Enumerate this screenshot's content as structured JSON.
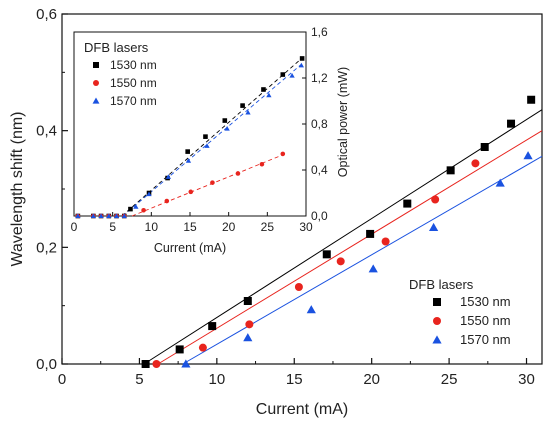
{
  "chart_data": [
    {
      "type": "scatter",
      "title": "",
      "xlabel": "Current (mA)",
      "ylabel": "Wavelength shift (nm)",
      "xlim": [
        0,
        31
      ],
      "ylim": [
        0,
        0.6
      ],
      "x_ticks": [
        "0",
        "5",
        "10",
        "15",
        "20",
        "25",
        "30"
      ],
      "y_ticks": [
        "0,0",
        "0,2",
        "0,4",
        "0,6"
      ],
      "grid": false,
      "legend_title": "DFB lasers",
      "legend_placement": "bottom-right",
      "series": [
        {
          "name": "1530 nm",
          "marker": "square",
          "color": "#000000",
          "fit_line": [
            [
              5.3,
              0.0
            ],
            [
              31,
              0.436
            ]
          ],
          "points": [
            [
              5.4,
              0.0
            ],
            [
              7.6,
              0.025
            ],
            [
              9.7,
              0.065
            ],
            [
              12.0,
              0.108
            ],
            [
              17.1,
              0.188
            ],
            [
              19.9,
              0.223
            ],
            [
              22.3,
              0.275
            ],
            [
              25.1,
              0.332
            ],
            [
              27.3,
              0.372
            ],
            [
              29.0,
              0.412
            ],
            [
              30.3,
              0.453
            ]
          ]
        },
        {
          "name": "1550 nm",
          "marker": "circle",
          "color": "#e8241e",
          "fit_line": [
            [
              6.2,
              0.0
            ],
            [
              31,
              0.4
            ]
          ],
          "points": [
            [
              6.1,
              0.0
            ],
            [
              9.1,
              0.028
            ],
            [
              12.1,
              0.068
            ],
            [
              15.3,
              0.132
            ],
            [
              18.0,
              0.176
            ],
            [
              20.9,
              0.21
            ],
            [
              24.1,
              0.282
            ],
            [
              26.7,
              0.344
            ]
          ]
        },
        {
          "name": "1570 nm",
          "marker": "triangle",
          "color": "#1a52e0",
          "fit_line": [
            [
              7.8,
              0.0
            ],
            [
              31,
              0.356
            ]
          ],
          "points": [
            [
              8.0,
              0.0
            ],
            [
              12.0,
              0.045
            ],
            [
              16.1,
              0.093
            ],
            [
              20.1,
              0.163
            ],
            [
              24.0,
              0.234
            ],
            [
              28.3,
              0.31
            ],
            [
              30.1,
              0.357
            ]
          ]
        }
      ]
    },
    {
      "type": "scatter",
      "title": "",
      "xlabel": "Current (mA)",
      "ylabel": "Optical power (mW)",
      "xlim": [
        0,
        30
      ],
      "ylim": [
        0,
        1.6
      ],
      "x_ticks": [
        "0",
        "5",
        "10",
        "15",
        "20",
        "25",
        "30"
      ],
      "y_ticks": [
        "0,0",
        "0,4",
        "0,8",
        "1,2",
        "1,6"
      ],
      "y_axis_side": "right",
      "grid": false,
      "legend_title": "DFB lasers",
      "legend_placement": "top-left",
      "series": [
        {
          "name": "1530 nm",
          "marker": "square",
          "color": "#000000",
          "fit_line": [
            [
              6.2,
              0.0
            ],
            [
              29.6,
              1.38
            ]
          ],
          "points": [
            [
              0.5,
              0.0
            ],
            [
              2.5,
              0.0
            ],
            [
              3.5,
              0.0
            ],
            [
              4.5,
              0.0
            ],
            [
              5.5,
              0.0
            ],
            [
              6.5,
              0.0
            ],
            [
              7.3,
              0.06
            ],
            [
              9.7,
              0.2
            ],
            [
              12.1,
              0.33
            ],
            [
              14.7,
              0.56
            ],
            [
              17.0,
              0.69
            ],
            [
              19.5,
              0.83
            ],
            [
              21.8,
              0.96
            ],
            [
              24.5,
              1.1
            ],
            [
              27.0,
              1.23
            ],
            [
              29.5,
              1.37
            ]
          ]
        },
        {
          "name": "1550 nm",
          "marker": "circle",
          "color": "#e8241e",
          "fit_line": [
            [
              7.5,
              0.0
            ],
            [
              27.3,
              0.54
            ]
          ],
          "points": [
            [
              0.5,
              0.0
            ],
            [
              2.5,
              0.0
            ],
            [
              3.5,
              0.0
            ],
            [
              4.5,
              0.0
            ],
            [
              5.5,
              0.0
            ],
            [
              6.5,
              0.0
            ],
            [
              9.0,
              0.05
            ],
            [
              12.0,
              0.13
            ],
            [
              15.1,
              0.21
            ],
            [
              17.9,
              0.29
            ],
            [
              21.2,
              0.37
            ],
            [
              24.3,
              0.45
            ],
            [
              27.0,
              0.54
            ]
          ]
        },
        {
          "name": "1570 nm",
          "marker": "triangle",
          "color": "#1a52e0",
          "fit_line": [
            [
              6.3,
              0.0
            ],
            [
              29.6,
              1.33
            ]
          ],
          "points": [
            [
              0.5,
              0.0
            ],
            [
              2.5,
              0.0
            ],
            [
              3.5,
              0.0
            ],
            [
              4.5,
              0.0
            ],
            [
              5.5,
              0.0
            ],
            [
              6.5,
              0.0
            ],
            [
              8.0,
              0.08
            ],
            [
              9.7,
              0.19
            ],
            [
              12.2,
              0.34
            ],
            [
              14.8,
              0.48
            ],
            [
              17.2,
              0.61
            ],
            [
              19.8,
              0.76
            ],
            [
              22.5,
              0.9
            ],
            [
              25.2,
              1.05
            ],
            [
              28.2,
              1.22
            ],
            [
              29.4,
              1.31
            ]
          ]
        }
      ]
    }
  ]
}
